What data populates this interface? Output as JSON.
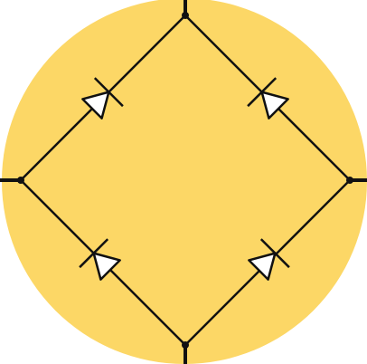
{
  "colors": {
    "background": "#ffffff",
    "disc_fill": "#fcd766",
    "wire": "#111111",
    "diode_fill": "#ffffff"
  },
  "diagram": {
    "kind": "bridge-rectifier",
    "nodes": [
      "top",
      "right",
      "bottom",
      "left"
    ],
    "diodes": [
      {
        "id": "d1",
        "from": "left",
        "to": "top",
        "direction": "up-right"
      },
      {
        "id": "d2",
        "from": "right",
        "to": "top",
        "direction": "up-left"
      },
      {
        "id": "d3",
        "from": "bottom",
        "to": "left",
        "direction": "up-left"
      },
      {
        "id": "d4",
        "from": "bottom",
        "to": "right",
        "direction": "up-right"
      }
    ]
  }
}
